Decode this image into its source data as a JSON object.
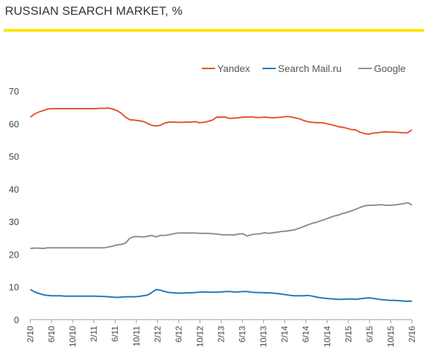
{
  "header": {
    "title": "RUSSIAN SEARCH MARKET, %",
    "accent_color": "#FFE600"
  },
  "chart_data": {
    "type": "line",
    "title": "RUSSIAN SEARCH MARKET, %",
    "xlabel": "",
    "ylabel": "",
    "ylim": [
      0,
      70
    ],
    "yticks": [
      0,
      10,
      20,
      30,
      40,
      50,
      60,
      70
    ],
    "grid": false,
    "legend_position": "top-right",
    "x_tick_labels": [
      "2/10",
      "6/10",
      "10/10",
      "2/11",
      "6/11",
      "10/11",
      "2/12",
      "6/12",
      "10/12",
      "2/13",
      "6/13",
      "10/13",
      "2/14",
      "6/14",
      "10/14",
      "2/15",
      "6/15",
      "10/15",
      "2/16"
    ],
    "series": [
      {
        "name": "Yandex",
        "color": "#E8502E",
        "values": [
          62.0,
          63.0,
          63.6,
          64.0,
          64.5,
          64.6,
          64.6,
          64.6,
          64.6,
          64.6,
          64.6,
          64.6,
          64.6,
          64.6,
          64.6,
          64.6,
          64.7,
          64.7,
          64.8,
          64.5,
          64.0,
          63.2,
          61.9,
          61.2,
          61.1,
          60.9,
          60.7,
          60.1,
          59.5,
          59.3,
          59.5,
          60.2,
          60.5,
          60.5,
          60.4,
          60.4,
          60.5,
          60.5,
          60.6,
          60.3,
          60.4,
          60.7,
          61.1,
          62.0,
          62.0,
          62.0,
          61.6,
          61.7,
          61.8,
          62.0,
          62.0,
          62.1,
          61.9,
          61.9,
          62.0,
          61.9,
          61.8,
          61.9,
          62.0,
          62.2,
          62.1,
          61.8,
          61.5,
          61.0,
          60.6,
          60.4,
          60.3,
          60.3,
          60.1,
          59.8,
          59.5,
          59.1,
          58.9,
          58.6,
          58.2,
          58.1,
          57.4,
          57.0,
          56.8,
          57.1,
          57.2,
          57.4,
          57.5,
          57.4,
          57.4,
          57.3,
          57.2,
          57.2,
          58.1
        ]
      },
      {
        "name": "Search Mail.ru",
        "color": "#1F77B8",
        "values": [
          9.2,
          8.5,
          8.0,
          7.6,
          7.4,
          7.3,
          7.3,
          7.3,
          7.2,
          7.2,
          7.2,
          7.2,
          7.2,
          7.2,
          7.2,
          7.2,
          7.1,
          7.1,
          7.0,
          6.9,
          6.8,
          6.9,
          7.0,
          7.0,
          7.0,
          7.1,
          7.3,
          7.5,
          8.3,
          9.2,
          9.0,
          8.6,
          8.3,
          8.2,
          8.1,
          8.1,
          8.2,
          8.2,
          8.3,
          8.4,
          8.5,
          8.4,
          8.4,
          8.4,
          8.5,
          8.6,
          8.6,
          8.5,
          8.5,
          8.6,
          8.6,
          8.4,
          8.3,
          8.3,
          8.2,
          8.2,
          8.1,
          8.0,
          7.8,
          7.6,
          7.4,
          7.3,
          7.3,
          7.3,
          7.4,
          7.2,
          6.9,
          6.7,
          6.5,
          6.4,
          6.3,
          6.2,
          6.2,
          6.3,
          6.3,
          6.2,
          6.4,
          6.5,
          6.7,
          6.5,
          6.3,
          6.1,
          6.0,
          5.9,
          5.9,
          5.8,
          5.7,
          5.6,
          5.7
        ]
      },
      {
        "name": "Google",
        "color": "#8C8C8C",
        "values": [
          21.8,
          21.9,
          21.9,
          21.8,
          22.0,
          22.0,
          22.0,
          22.0,
          22.0,
          22.0,
          22.0,
          22.0,
          22.0,
          22.0,
          22.0,
          22.0,
          22.0,
          22.0,
          22.2,
          22.5,
          22.9,
          23.0,
          23.5,
          25.0,
          25.4,
          25.4,
          25.3,
          25.5,
          25.8,
          25.3,
          25.8,
          25.8,
          26.0,
          26.3,
          26.5,
          26.5,
          26.5,
          26.5,
          26.5,
          26.4,
          26.4,
          26.4,
          26.3,
          26.2,
          26.0,
          26.0,
          26.0,
          25.9,
          26.2,
          26.3,
          25.6,
          26.0,
          26.2,
          26.3,
          26.6,
          26.4,
          26.6,
          26.8,
          27.0,
          27.1,
          27.3,
          27.5,
          28.0,
          28.5,
          29.0,
          29.5,
          29.8,
          30.3,
          30.7,
          31.2,
          31.7,
          32.0,
          32.5,
          32.8,
          33.3,
          33.8,
          34.3,
          34.8,
          35.0,
          35.0,
          35.1,
          35.2,
          35.0,
          35.0,
          35.1,
          35.3,
          35.5,
          35.8,
          35.1
        ]
      }
    ]
  }
}
